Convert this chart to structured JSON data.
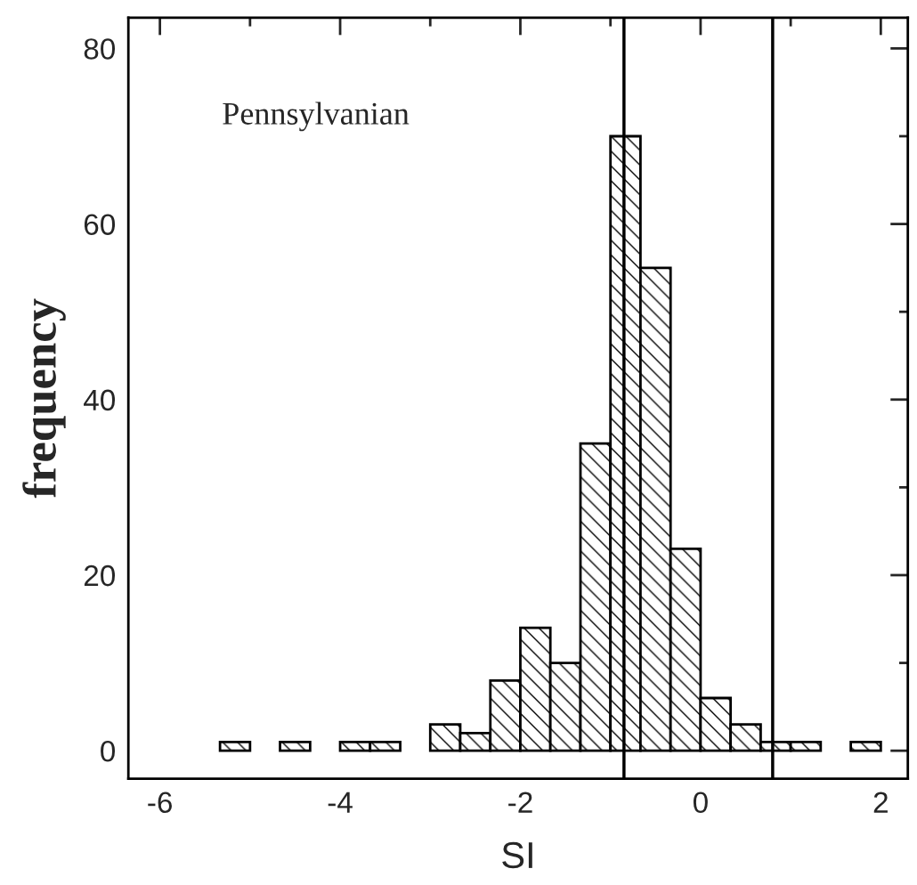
{
  "chart_data": {
    "type": "histogram",
    "xlabel": "SI",
    "ylabel": "frequency",
    "annotations": [
      "Pennsylvanian"
    ],
    "bins": [
      -5.333,
      -5,
      -4.667,
      -4.333,
      -4,
      -3.667,
      -3.333,
      -3,
      -2.667,
      -2.333,
      -2,
      -1.667,
      -1.333,
      -1,
      -0.667,
      -0.333,
      0,
      0.333,
      0.667,
      1,
      1.333,
      1.667,
      2
    ],
    "values": [
      1,
      0,
      1,
      0,
      1,
      1,
      0,
      3,
      2,
      8,
      14,
      10,
      35,
      70,
      55,
      23,
      6,
      3,
      1,
      1,
      0,
      1
    ],
    "color": "#000000",
    "xlim": [
      -6.35,
      2.3
    ],
    "ylim": [
      -3.2,
      83.5
    ],
    "xticks": [
      -6,
      {
        "value": -5,
        "label": null
      },
      -4,
      {
        "value": -3,
        "label": null
      },
      -2,
      {
        "value": -1,
        "label": null
      },
      0,
      {
        "value": 1,
        "label": null
      },
      2
    ],
    "yticks": [
      0,
      {
        "value": 10,
        "label": null
      },
      20,
      {
        "value": 30,
        "label": null
      },
      40,
      {
        "value": 50,
        "label": null
      },
      60,
      {
        "value": 70,
        "label": null
      },
      80
    ],
    "ref_lines": [
      {
        "axis": "x",
        "value": -0.85,
        "color": "#000000"
      },
      {
        "axis": "x",
        "value": 0.8,
        "color": "#000000"
      }
    ],
    "grid": false,
    "legend": false
  }
}
